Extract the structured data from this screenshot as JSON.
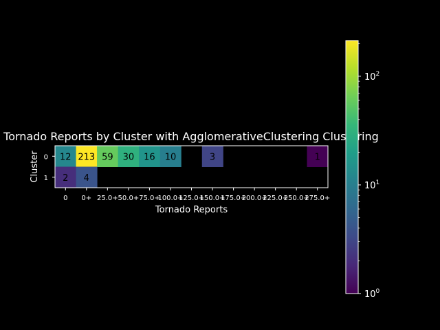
{
  "chart_data": {
    "type": "heatmap",
    "title": "Tornado Reports by Cluster with AgglomerativeClustering Clustering",
    "xlabel": "Tornado Reports",
    "ylabel": "Cluster",
    "x_categories": [
      "0",
      "0+",
      "25.0+",
      "50.0+",
      "75.0+",
      "100.0+",
      "125.0+",
      "150.0+",
      "175.0+",
      "200.0+",
      "225.0+",
      "250.0+",
      "275.0+"
    ],
    "y_categories": [
      "0",
      "1"
    ],
    "values": [
      [
        12,
        213,
        59,
        30,
        16,
        10,
        null,
        3,
        null,
        null,
        null,
        null,
        1
      ],
      [
        2,
        4,
        null,
        null,
        null,
        null,
        null,
        null,
        null,
        null,
        null,
        null,
        null
      ]
    ],
    "colorbar": {
      "scale": "log",
      "colormap": "viridis",
      "range": [
        1,
        213
      ],
      "ticks": [
        {
          "value": 1,
          "base": "10",
          "exp": "0"
        },
        {
          "value": 10,
          "base": "10",
          "exp": "1"
        },
        {
          "value": 100,
          "base": "10",
          "exp": "2"
        }
      ]
    },
    "grid": false,
    "background": "#000000",
    "text_color": "#ffffff"
  }
}
